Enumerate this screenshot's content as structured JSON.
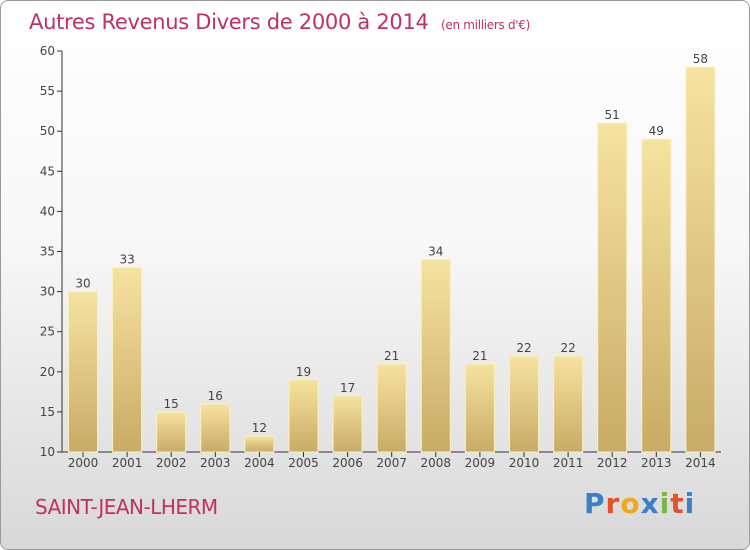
{
  "chart_data": {
    "type": "bar",
    "title": "Autres Revenus Divers de 2000 à 2014",
    "unit_note": "(en milliers d'€)",
    "categories": [
      "2000",
      "2001",
      "2002",
      "2003",
      "2004",
      "2005",
      "2006",
      "2007",
      "2008",
      "2009",
      "2010",
      "2011",
      "2012",
      "2013",
      "2014"
    ],
    "values": [
      30,
      33,
      15,
      16,
      12,
      19,
      17,
      21,
      34,
      21,
      22,
      22,
      51,
      49,
      58
    ],
    "ylim": [
      10,
      60
    ],
    "yticks": [
      10,
      15,
      20,
      25,
      30,
      35,
      40,
      45,
      50,
      55,
      60
    ],
    "grid": false,
    "bar_color_top": "#f6e3a0",
    "bar_color_bottom": "#c8ab65"
  },
  "commune": "SAINT-JEAN-LHERM",
  "brand": {
    "letters": [
      "P",
      "r",
      "o",
      "x",
      "i",
      "t",
      "i"
    ],
    "colors": [
      "#3c7fc4",
      "#e0522c",
      "#f2a81d",
      "#3c7fc4",
      "#7ab648",
      "#e0522c",
      "#3c7fc4"
    ]
  },
  "colors": {
    "title": "#bf3260",
    "axis": "#333333"
  }
}
